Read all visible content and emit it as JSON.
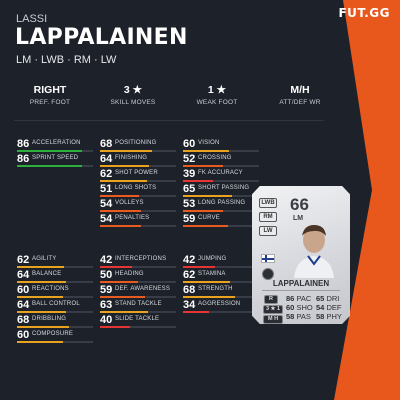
{
  "brand": "FUT.GG",
  "player": {
    "first_name": "LASSI",
    "last_name": "LAPPALAINEN",
    "positions": "LM · LWB · RM · LW"
  },
  "info": [
    {
      "value": "RIGHT",
      "label": "PREF. FOOT"
    },
    {
      "value": "3 ★",
      "label": "SKILL MOVES"
    },
    {
      "value": "1 ★",
      "label": "WEAK FOOT"
    },
    {
      "value": "M/H",
      "label": "ATT/DEF WR"
    }
  ],
  "stat_groups": [
    [
      {
        "value": 86,
        "name": "ACCELERATION",
        "color": "#2eae3d"
      },
      {
        "value": 86,
        "name": "SPRINT SPEED",
        "color": "#2eae3d"
      }
    ],
    [
      {
        "value": 68,
        "name": "POSITIONING",
        "color": "#e9a21f"
      },
      {
        "value": 64,
        "name": "FINISHING",
        "color": "#e9a21f"
      },
      {
        "value": 62,
        "name": "SHOT POWER",
        "color": "#e9a21f"
      },
      {
        "value": 51,
        "name": "LONG SHOTS",
        "color": "#e85a1f"
      },
      {
        "value": 54,
        "name": "VOLLEYS",
        "color": "#e85a1f"
      },
      {
        "value": 54,
        "name": "PENALTIES",
        "color": "#e85a1f"
      }
    ],
    [
      {
        "value": 60,
        "name": "VISION",
        "color": "#e9a21f"
      },
      {
        "value": 52,
        "name": "CROSSING",
        "color": "#e85a1f"
      },
      {
        "value": 39,
        "name": "FK ACCURACY",
        "color": "#e53434"
      },
      {
        "value": 65,
        "name": "SHORT PASSING",
        "color": "#e9a21f"
      },
      {
        "value": 53,
        "name": "LONG PASSING",
        "color": "#e85a1f"
      },
      {
        "value": 59,
        "name": "CURVE",
        "color": "#e85a1f"
      }
    ],
    [
      {
        "value": 62,
        "name": "AGILITY",
        "color": "#e9a21f"
      },
      {
        "value": 64,
        "name": "BALANCE",
        "color": "#e9a21f"
      },
      {
        "value": 60,
        "name": "REACTIONS",
        "color": "#e9a21f"
      },
      {
        "value": 64,
        "name": "BALL CONTROL",
        "color": "#e9a21f"
      },
      {
        "value": 68,
        "name": "DRIBBLING",
        "color": "#e9a21f"
      },
      {
        "value": 60,
        "name": "COMPOSURE",
        "color": "#e9a21f"
      }
    ],
    [
      {
        "value": 42,
        "name": "INTERCEPTIONS",
        "color": "#e53434"
      },
      {
        "value": 50,
        "name": "HEADING",
        "color": "#e85a1f"
      },
      {
        "value": 59,
        "name": "DEF. AWARENESS",
        "color": "#e85a1f"
      },
      {
        "value": 63,
        "name": "STAND TACKLE",
        "color": "#e9a21f"
      },
      {
        "value": 40,
        "name": "SLIDE TACKLE",
        "color": "#e53434"
      }
    ],
    [
      {
        "value": 42,
        "name": "JUMPING",
        "color": "#e53434"
      },
      {
        "value": 62,
        "name": "STAMINA",
        "color": "#e9a21f"
      },
      {
        "value": 68,
        "name": "STRENGTH",
        "color": "#e9a21f"
      },
      {
        "value": 34,
        "name": "AGGRESSION",
        "color": "#e53434"
      }
    ]
  ],
  "card": {
    "rating": "66",
    "position": "LM",
    "alt_positions": [
      "LWB",
      "RM",
      "LW"
    ],
    "name": "LAPPALAINEN",
    "extras": [
      "R",
      "3 ★ 1",
      "M H"
    ],
    "attributes_left": [
      {
        "value": "86",
        "label": "PAC"
      },
      {
        "value": "60",
        "label": "SHO"
      },
      {
        "value": "58",
        "label": "PAS"
      }
    ],
    "attributes_right": [
      {
        "value": "65",
        "label": "DRI"
      },
      {
        "value": "54",
        "label": "DEF"
      },
      {
        "value": "58",
        "label": "PHY"
      }
    ]
  }
}
